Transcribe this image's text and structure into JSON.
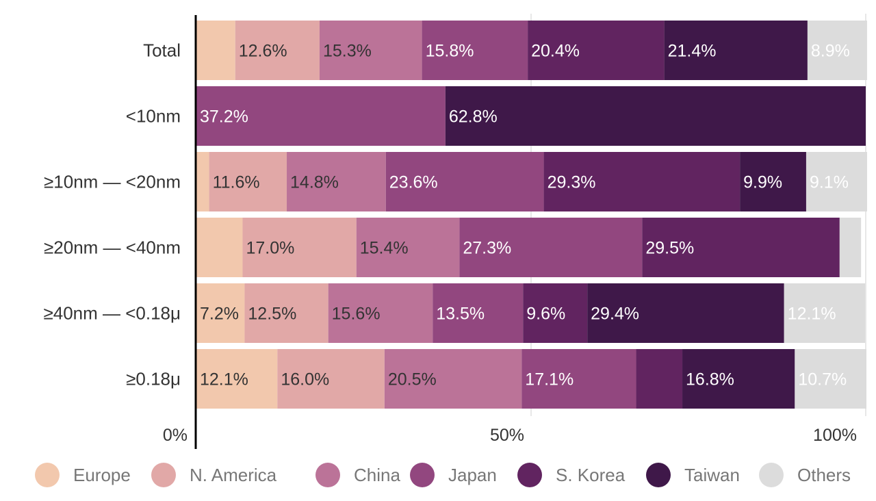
{
  "chart_data": {
    "type": "bar",
    "orientation": "horizontal",
    "stacked": true,
    "percent_stacked": true,
    "categories": [
      "Total",
      "<10nm",
      "≥10nm — <20nm",
      "≥20nm — <40nm",
      "≥40nm — <0.18μ",
      "≥0.18μ"
    ],
    "series": [
      {
        "name": "Europe",
        "color": "#f2c8ad",
        "values": [
          5.8,
          0,
          1.9,
          6.9,
          7.2,
          12.1
        ]
      },
      {
        "name": "N. America",
        "color": "#e1a8a7",
        "values": [
          12.6,
          0,
          11.6,
          17.0,
          12.5,
          16.0
        ]
      },
      {
        "name": "China",
        "color": "#bb7398",
        "values": [
          15.3,
          0,
          14.8,
          15.4,
          15.6,
          20.5
        ]
      },
      {
        "name": "Japan",
        "color": "#92477f",
        "values": [
          15.8,
          37.2,
          23.6,
          27.3,
          13.5,
          17.1
        ]
      },
      {
        "name": "S. Korea",
        "color": "#612460",
        "values": [
          20.4,
          0,
          29.3,
          29.5,
          9.6,
          6.9
        ]
      },
      {
        "name": "Taiwan",
        "color": "#3f1849",
        "values": [
          21.4,
          62.8,
          9.9,
          0,
          29.4,
          16.8
        ]
      },
      {
        "name": "Others",
        "color": "#dcdcdc",
        "values": [
          8.9,
          0,
          9.1,
          3.2,
          12.1,
          10.7
        ]
      }
    ],
    "data_labels": [
      [
        "",
        "12.6%",
        "15.3%",
        "15.8%",
        "20.4%",
        "21.4%",
        "8.9%"
      ],
      [
        "",
        "",
        "",
        "37.2%",
        "",
        "62.8%",
        ""
      ],
      [
        "",
        "11.6%",
        "14.8%",
        "23.6%",
        "29.3%",
        "9.9%",
        "9.1%"
      ],
      [
        "",
        "17.0%",
        "15.4%",
        "27.3%",
        "29.5%",
        "",
        ""
      ],
      [
        "7.2%",
        "12.5%",
        "15.6%",
        "13.5%",
        "9.6%",
        "29.4%",
        "12.1%"
      ],
      [
        "12.1%",
        "16.0%",
        "20.5%",
        "17.1%",
        "",
        "16.8%",
        "10.7%"
      ]
    ],
    "x_ticks": [
      {
        "value": 0,
        "label": "0%"
      },
      {
        "value": 50,
        "label": "50%"
      },
      {
        "value": 100,
        "label": "100%"
      }
    ],
    "xlim": [
      0,
      100
    ],
    "grid": true,
    "legend_position": "bottom",
    "title": "",
    "xlabel": "",
    "ylabel": ""
  }
}
